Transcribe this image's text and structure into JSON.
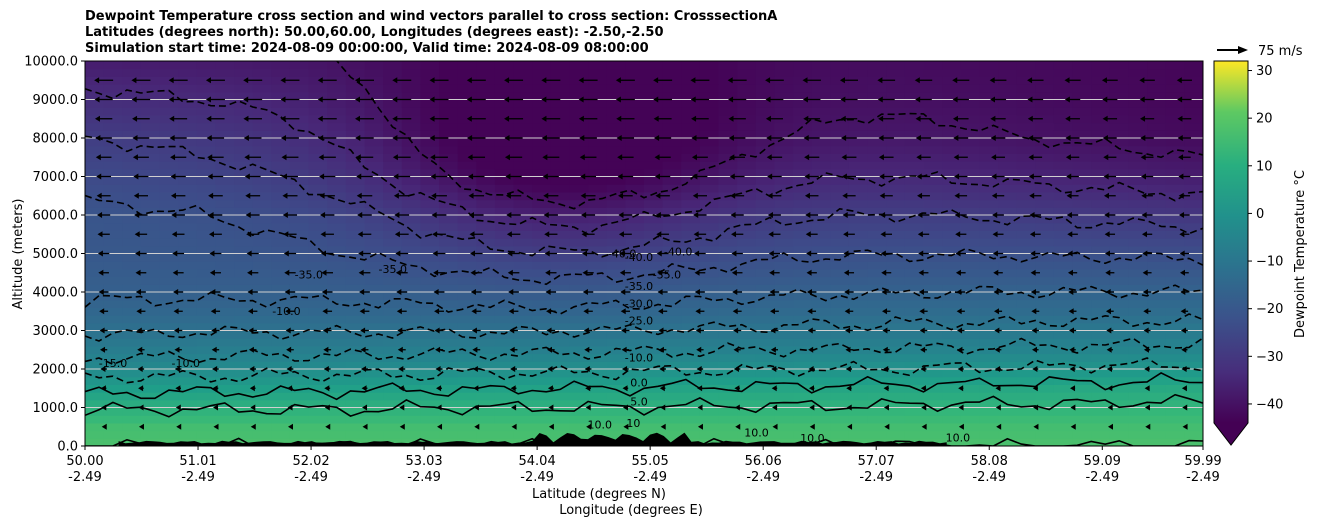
{
  "chart_data": {
    "type": "heatmap",
    "title_lines": [
      "Dewpoint Temperature cross section and wind vectors parallel to cross section: CrosssectionA",
      "Latitudes (degrees north): 50.00,60.00, Longitudes (degrees east): -2.50,-2.50",
      "Simulation start time: 2024-08-09 00:00:00, Valid time: 2024-08-09 08:00:00"
    ],
    "xlabel_1": "Latitude (degrees N)",
    "xlabel_2": "Longitude (degrees E)",
    "ylabel": "Altitude (meters)",
    "colorbar_label": "Dewpoint Temperature °C",
    "xlim": [
      50.0,
      59.99
    ],
    "ylim": [
      0,
      10000
    ],
    "x_ticks": [
      {
        "lat": "50.00",
        "lon": "-2.49",
        "v": 50.0
      },
      {
        "lat": "51.01",
        "lon": "-2.49",
        "v": 51.01
      },
      {
        "lat": "52.02",
        "lon": "-2.49",
        "v": 52.02
      },
      {
        "lat": "53.03",
        "lon": "-2.49",
        "v": 53.03
      },
      {
        "lat": "54.04",
        "lon": "-2.49",
        "v": 54.04
      },
      {
        "lat": "55.05",
        "lon": "-2.49",
        "v": 55.05
      },
      {
        "lat": "56.06",
        "lon": "-2.49",
        "v": 56.06
      },
      {
        "lat": "57.07",
        "lon": "-2.49",
        "v": 57.07
      },
      {
        "lat": "58.08",
        "lon": "-2.49",
        "v": 58.08
      },
      {
        "lat": "59.09",
        "lon": "-2.49",
        "v": 59.09
      },
      {
        "lat": "59.99",
        "lon": "-2.49",
        "v": 59.99
      }
    ],
    "y_ticks": [
      {
        "label": "0.0",
        "v": 0
      },
      {
        "label": "1000.0",
        "v": 1000
      },
      {
        "label": "2000.0",
        "v": 2000
      },
      {
        "label": "3000.0",
        "v": 3000
      },
      {
        "label": "4000.0",
        "v": 4000
      },
      {
        "label": "5000.0",
        "v": 5000
      },
      {
        "label": "6000.0",
        "v": 6000
      },
      {
        "label": "7000.0",
        "v": 7000
      },
      {
        "label": "8000.0",
        "v": 8000
      },
      {
        "label": "9000.0",
        "v": 9000
      },
      {
        "label": "10000.0",
        "v": 10000
      }
    ],
    "grid": "horizontal",
    "colorbar": {
      "min": -44,
      "max": 32,
      "extend": "min",
      "ticks": [
        {
          "label": "−40",
          "v": -40
        },
        {
          "label": "−30",
          "v": -30
        },
        {
          "label": "−20",
          "v": -20
        },
        {
          "label": "−10",
          "v": -10
        },
        {
          "label": "0",
          "v": 0
        },
        {
          "label": "10",
          "v": 10
        },
        {
          "label": "20",
          "v": 20
        },
        {
          "label": "30",
          "v": 30
        }
      ],
      "colormap": "viridis"
    },
    "field_profile": {
      "altitudes_m": [
        0,
        500,
        1000,
        1500,
        2000,
        2500,
        3000,
        3500,
        4000,
        5000,
        6000,
        7000,
        8000,
        9000,
        10000
      ],
      "west_dewpoint_c": [
        10,
        9,
        4,
        -2,
        -8,
        -12,
        -16,
        -19,
        -21,
        -23,
        -24,
        -27,
        -30,
        -34,
        -38
      ],
      "east_dewpoint_c": [
        10,
        9,
        6,
        2,
        -4,
        -9,
        -13,
        -17,
        -20,
        -26,
        -32,
        -38,
        -42,
        -43,
        -43
      ]
    },
    "contour_labels": [
      {
        "text": "-15.0",
        "x": 50.25,
        "y": 2050
      },
      {
        "text": "-10.0",
        "x": 50.9,
        "y": 2050
      },
      {
        "text": "-10.0",
        "x": 51.8,
        "y": 3400
      },
      {
        "text": "-35.0",
        "x": 52.0,
        "y": 4350
      },
      {
        "text": "-35.0",
        "x": 52.75,
        "y": 4500
      },
      {
        "text": "-40.0",
        "x": 54.8,
        "y": 4900
      },
      {
        "text": "-40.0",
        "x": 55.3,
        "y": 4950
      },
      {
        "text": "-40.0",
        "x": 54.95,
        "y": 4800
      },
      {
        "text": "-35.0",
        "x": 55.2,
        "y": 4350
      },
      {
        "text": "-35.0",
        "x": 54.95,
        "y": 4050
      },
      {
        "text": "-30.0",
        "x": 54.95,
        "y": 3600
      },
      {
        "text": "-25.0",
        "x": 54.95,
        "y": 3150
      },
      {
        "text": "-10.0",
        "x": 54.95,
        "y": 2200
      },
      {
        "text": "0.0",
        "x": 54.95,
        "y": 1550
      },
      {
        "text": "5.0",
        "x": 54.95,
        "y": 1050
      },
      {
        "text": "10",
        "x": 54.9,
        "y": 500
      },
      {
        "text": "10.0",
        "x": 54.6,
        "y": 450
      },
      {
        "text": "10.0",
        "x": 56.0,
        "y": 250
      },
      {
        "text": "10.0",
        "x": 56.5,
        "y": 100
      },
      {
        "text": "10.0",
        "x": 57.8,
        "y": 120
      }
    ],
    "quiver_key": {
      "label": "75 m/s",
      "value": 75
    },
    "wind_vectors": "horizontal easterly flow (pointing west), stronger aloft",
    "terrain": "black terrain silhouette near 0 m between 50.3 and 57.7 degrees N"
  }
}
